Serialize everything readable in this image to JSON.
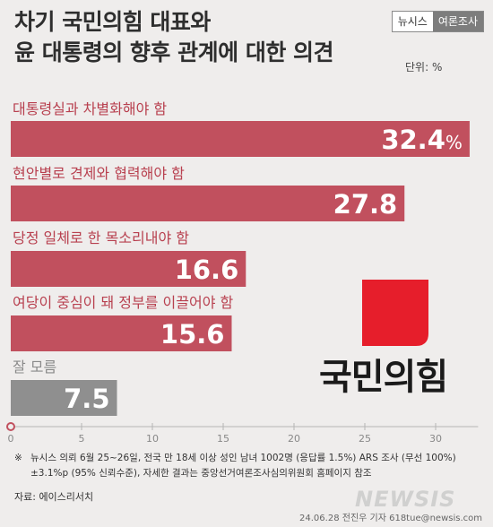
{
  "header": {
    "title_line1": "차기 국민의힘 대표와",
    "title_line2": "윤 대통령의 향후 관계에 대한 의견",
    "unit": "단위: %",
    "brand_left": "뉴시스",
    "brand_right": "여론조사"
  },
  "colors": {
    "bar_main": "#c1505e",
    "bar_other": "#8f8f8f",
    "label_main": "#b8404f",
    "label_other": "#8a8a8a",
    "logo_red": "#e61e2b"
  },
  "chart_data": {
    "type": "bar",
    "orientation": "horizontal",
    "categories": [
      "대통령실과 차별화해야 함",
      "현안별로 견제와 협력해야 함",
      "당정 일체로 한 목소리내야 함",
      "여당이 중심이 돼 정부를 이끌어야 함",
      "잘 모름"
    ],
    "values": [
      32.4,
      27.8,
      16.6,
      15.6,
      7.5
    ],
    "value_labels": [
      "32.4",
      "27.8",
      "16.6",
      "15.6",
      "7.5"
    ],
    "first_value_suffix": "%",
    "xlim": [
      0,
      33
    ],
    "ticks": [
      0,
      5,
      10,
      15,
      20,
      25,
      30
    ],
    "tick_labels": [
      "0",
      "5",
      "10",
      "15",
      "20",
      "25",
      "30"
    ]
  },
  "logo": {
    "party_name": "국민의힘",
    "icon": "red-square-party-emblem"
  },
  "footer": {
    "note_mark": "※",
    "note_line1": "뉴시스 의뢰 6월 25~26일, 전국 만 18세 이상 성인 남녀 1002명 (응답률 1.5%) ARS 조사 (무선 100%)",
    "note_line2": "±3.1%p (95% 신뢰수준), 자세한 결과는 중앙선거여론조사심의위원회 홈페이지 참조",
    "source": "자료: 에이스리서치",
    "credit": "24.06.28 전진우 기자 618tue@newsis.com",
    "watermark": "NEWSIS"
  }
}
